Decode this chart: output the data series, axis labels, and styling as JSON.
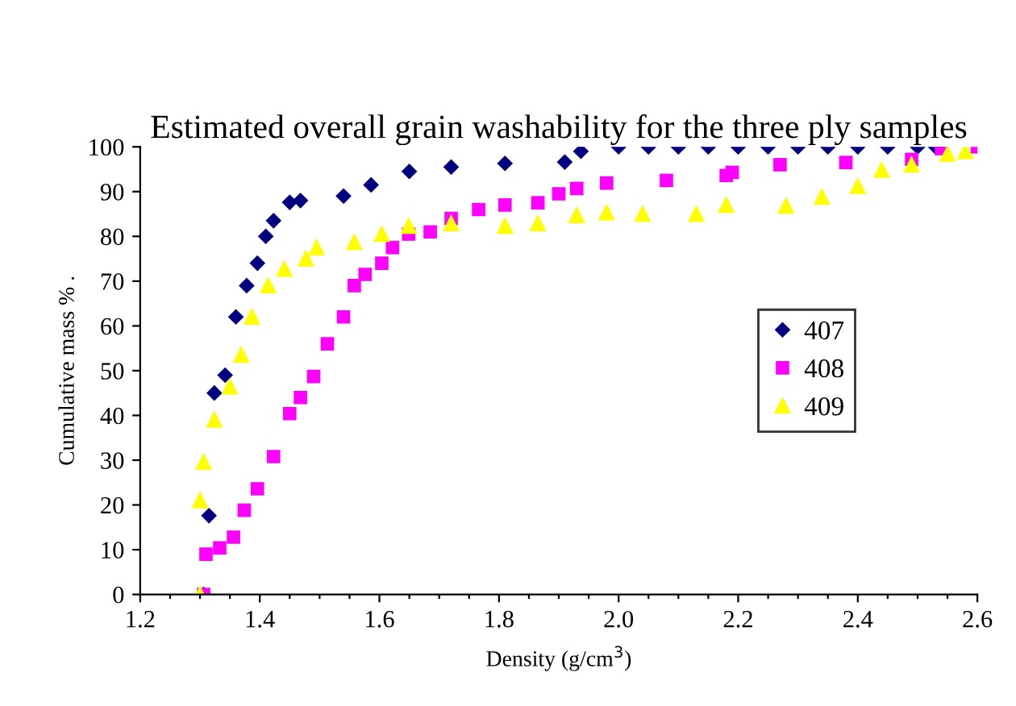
{
  "chart_data": {
    "type": "scatter",
    "title": "Estimated overall grain washability for the three ply samples",
    "xlabel": "Density (g/cm$^{3}$)",
    "ylabel": "Cumulative mass % .",
    "xlim": [
      1.2,
      2.6
    ],
    "ylim": [
      0,
      100
    ],
    "xticks": [
      1.2,
      {
        "value": 1.25,
        "label": null
      },
      {
        "value": 1.3,
        "label": null
      },
      {
        "value": 1.35,
        "label": null
      },
      1.4,
      {
        "value": 1.45,
        "label": null
      },
      {
        "value": 1.5,
        "label": null
      },
      {
        "value": 1.55,
        "label": null
      },
      1.6,
      {
        "value": 1.65,
        "label": null
      },
      {
        "value": 1.7,
        "label": null
      },
      {
        "value": 1.75,
        "label": null
      },
      1.8,
      {
        "value": 1.85,
        "label": null
      },
      {
        "value": 1.9,
        "label": null
      },
      {
        "value": 1.95,
        "label": null
      },
      {
        "value": 2.0,
        "label": "2.0"
      },
      {
        "value": 2.05,
        "label": null
      },
      {
        "value": 2.1,
        "label": null
      },
      {
        "value": 2.15,
        "label": null
      },
      2.2,
      {
        "value": 2.25,
        "label": null
      },
      {
        "value": 2.3,
        "label": null
      },
      {
        "value": 2.35,
        "label": null
      },
      2.4,
      {
        "value": 2.45,
        "label": null
      },
      {
        "value": 2.5,
        "label": null
      },
      {
        "value": 2.55,
        "label": null
      },
      2.6
    ],
    "yticks": [
      0,
      10,
      20,
      30,
      40,
      50,
      60,
      70,
      80,
      90,
      100
    ],
    "grid": false,
    "legend": "right",
    "series": [
      {
        "name": "407",
        "color": "#000080",
        "marker": "diamond",
        "x": [
          1.306,
          1.315,
          1.324,
          1.342,
          1.36,
          1.378,
          1.396,
          1.41,
          1.423,
          1.45,
          1.468,
          1.54,
          1.586,
          1.65,
          1.72,
          1.81,
          1.91,
          1.937,
          2.0,
          2.05,
          2.1,
          2.15,
          2.2,
          2.25,
          2.3,
          2.35,
          2.4,
          2.45,
          2.5,
          2.53
        ],
        "values": [
          0,
          17.6,
          45,
          49,
          62,
          69,
          74,
          80,
          83.5,
          87.6,
          88,
          89,
          91.5,
          94.5,
          95.5,
          96.3,
          96.6,
          99,
          100,
          100,
          100,
          100,
          100,
          100,
          100,
          100,
          100,
          100,
          100,
          100
        ]
      },
      {
        "name": "408",
        "color": "#ff00ff",
        "marker": "square",
        "x": [
          1.306,
          1.31,
          1.333,
          1.356,
          1.374,
          1.396,
          1.423,
          1.45,
          1.468,
          1.49,
          1.513,
          1.54,
          1.558,
          1.576,
          1.604,
          1.622,
          1.649,
          1.685,
          1.72,
          1.766,
          1.81,
          1.865,
          1.9,
          1.93,
          1.98,
          2.08,
          2.18,
          2.19,
          2.27,
          2.38,
          2.49,
          2.54,
          2.6
        ],
        "values": [
          0,
          9,
          10.4,
          12.8,
          18.8,
          23.6,
          30.8,
          40.4,
          44,
          48.7,
          56,
          62,
          69,
          71.5,
          74,
          77.5,
          80.5,
          81,
          84,
          86,
          87,
          87.5,
          89.5,
          90.7,
          91.9,
          92.5,
          93.6,
          94.3,
          96,
          96.5,
          97.2,
          99.6,
          100
        ]
      },
      {
        "name": "409",
        "color": "#ffff00",
        "marker": "triangle",
        "x": [
          1.3,
          1.3,
          1.306,
          1.324,
          1.35,
          1.369,
          1.387,
          1.414,
          1.441,
          1.477,
          1.495,
          1.558,
          1.604,
          1.649,
          1.72,
          1.81,
          1.865,
          1.93,
          1.98,
          2.04,
          2.13,
          2.18,
          2.28,
          2.34,
          2.4,
          2.44,
          2.49,
          2.55,
          2.58
        ],
        "values": [
          0,
          21,
          29.6,
          39,
          46.4,
          53.5,
          62,
          69,
          72.7,
          75,
          77.5,
          78.7,
          80.5,
          82.3,
          82.9,
          82.3,
          82.9,
          84.7,
          85.3,
          85,
          85,
          87,
          86.8,
          88.8,
          91.2,
          94.8,
          96,
          98.4,
          99
        ]
      }
    ]
  }
}
